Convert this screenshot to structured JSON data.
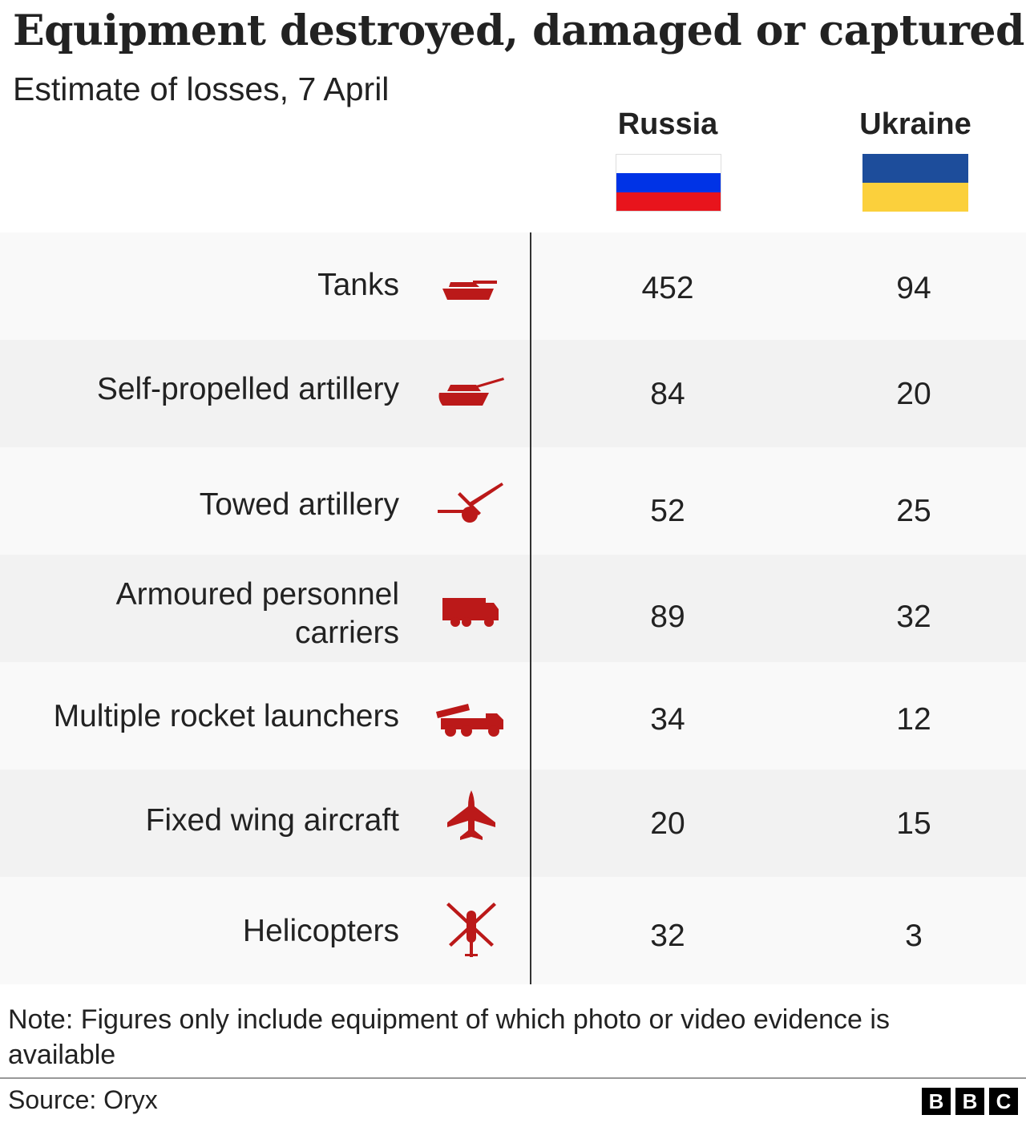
{
  "title": "Equipment destroyed, damaged or captured",
  "subtitle": "Estimate of losses, 7 April",
  "columns": [
    {
      "name": "Russia",
      "flag_colors": [
        "#ffffff",
        "#0033e6",
        "#e8141c"
      ]
    },
    {
      "name": "Ukraine",
      "flag_colors": [
        "#1d4d9b",
        "#fbd03c"
      ]
    }
  ],
  "colors": {
    "icon": "#bb1919",
    "text": "#222222",
    "row_light": "#f9f9f9",
    "row_dark": "#f2f2f2"
  },
  "chart_data": {
    "type": "table",
    "title": "Equipment destroyed, damaged or captured",
    "subtitle": "Estimate of losses, 7 April",
    "columns": [
      "Russia",
      "Ukraine"
    ],
    "rows": [
      {
        "category": "Tanks",
        "lines": [
          "Tanks"
        ],
        "icon": "tank-icon",
        "russia": "452",
        "ukraine": "94"
      },
      {
        "category": "Self-propelled artillery",
        "lines": [
          "Self-propelled artillery"
        ],
        "icon": "self-propelled-artillery-icon",
        "russia": "84",
        "ukraine": "20"
      },
      {
        "category": "Towed artillery",
        "lines": [
          "Towed artillery"
        ],
        "icon": "towed-artillery-icon",
        "russia": "52",
        "ukraine": "25"
      },
      {
        "category": "Armoured personnel carriers",
        "lines": [
          "Armoured personnel",
          "carriers"
        ],
        "icon": "armoured-carrier-icon",
        "russia": "89",
        "ukraine": "32"
      },
      {
        "category": "Multiple rocket launchers",
        "lines": [
          "Multiple rocket launchers"
        ],
        "icon": "rocket-launcher-icon",
        "russia": "34",
        "ukraine": "12"
      },
      {
        "category": "Fixed wing aircraft",
        "lines": [
          "Fixed wing aircraft"
        ],
        "icon": "fixed-wing-aircraft-icon",
        "russia": "20",
        "ukraine": "15"
      },
      {
        "category": "Helicopters",
        "lines": [
          "Helicopters"
        ],
        "icon": "helicopter-icon",
        "russia": "32",
        "ukraine": "3"
      }
    ]
  },
  "note": "Note: Figures only include equipment of which photo or video evidence is available",
  "source": "Source: Oryx",
  "logo": [
    "B",
    "B",
    "C"
  ]
}
